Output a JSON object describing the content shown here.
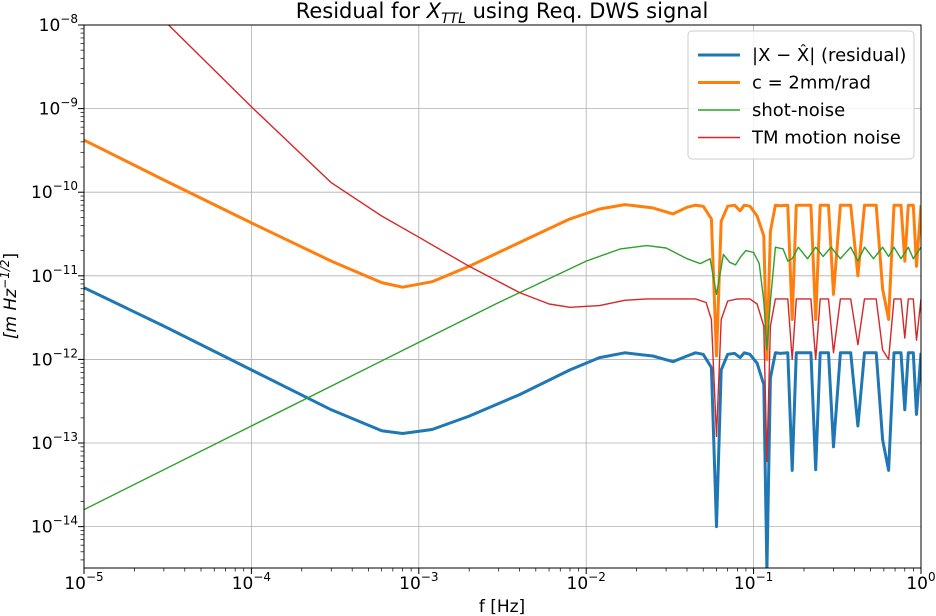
{
  "chart_data": {
    "type": "line",
    "title": {
      "prefix": "Residual for ",
      "symbol": "X",
      "subscript": "TTL",
      "suffix": " using Req. DWS signal"
    },
    "xlabel": "f [Hz]",
    "ylabel": {
      "base": "[m Hz",
      "exponent": "−1/2",
      "close": "]"
    },
    "x_scale": "log",
    "y_scale": "log",
    "xlim": [
      1e-05,
      1
    ],
    "ylim": [
      3.2e-15,
      1e-08
    ],
    "grid": true,
    "legend_position": "top-right",
    "x_ticks": [
      {
        "value": 1e-05,
        "base": "10",
        "exp": "−5"
      },
      {
        "value": 0.0001,
        "base": "10",
        "exp": "−4"
      },
      {
        "value": 0.001,
        "base": "10",
        "exp": "−3"
      },
      {
        "value": 0.01,
        "base": "10",
        "exp": "−2"
      },
      {
        "value": 0.1,
        "base": "10",
        "exp": "−1"
      },
      {
        "value": 1,
        "base": "10",
        "exp": "0"
      }
    ],
    "y_ticks": [
      {
        "value": 1e-08,
        "base": "10",
        "exp": "−8"
      },
      {
        "value": 1e-09,
        "base": "10",
        "exp": "−9"
      },
      {
        "value": 1e-10,
        "base": "10",
        "exp": "−10"
      },
      {
        "value": 1e-11,
        "base": "10",
        "exp": "−11"
      },
      {
        "value": 1e-12,
        "base": "10",
        "exp": "−12"
      },
      {
        "value": 1e-13,
        "base": "10",
        "exp": "−13"
      },
      {
        "value": 1e-14,
        "base": "10",
        "exp": "−14"
      }
    ],
    "series": [
      {
        "name": "|X − X̂| (residual)",
        "color": "#1f77b4",
        "line_width": "thick",
        "points": [
          [
            1e-05,
            7.2e-12
          ],
          [
            3e-05,
            2.5e-12
          ],
          [
            0.0001,
            7.5e-13
          ],
          [
            0.0003,
            2.5e-13
          ],
          [
            0.0006,
            1.4e-13
          ],
          [
            0.0008,
            1.3e-13
          ],
          [
            0.0012,
            1.45e-13
          ],
          [
            0.002,
            2.1e-13
          ],
          [
            0.004,
            3.8e-13
          ],
          [
            0.008,
            7.5e-13
          ],
          [
            0.012,
            1.05e-12
          ],
          [
            0.017,
            1.2e-12
          ],
          [
            0.025,
            1.1e-12
          ],
          [
            0.033,
            9.4e-13
          ],
          [
            0.04,
            1.1e-12
          ],
          [
            0.045,
            1.2e-12
          ],
          [
            0.05,
            1.15e-12
          ],
          [
            0.056,
            8e-13
          ],
          [
            0.06,
            1e-14
          ],
          [
            0.064,
            7.5e-13
          ],
          [
            0.07,
            1.15e-12
          ],
          [
            0.077,
            1.18e-12
          ],
          [
            0.083,
            1.05e-12
          ],
          [
            0.088,
            1.2e-12
          ],
          [
            0.095,
            1.15e-12
          ],
          [
            0.105,
            9e-13
          ],
          [
            0.115,
            5e-13
          ],
          [
            0.12,
            3e-15
          ],
          [
            0.126,
            6e-13
          ],
          [
            0.135,
            1.2e-12
          ],
          [
            0.145,
            1.18e-12
          ],
          [
            0.16,
            1.2e-12
          ],
          [
            0.17,
            4.7e-14
          ],
          [
            0.18,
            1.2e-12
          ],
          [
            0.2,
            1.2e-12
          ],
          [
            0.22,
            1.2e-12
          ],
          [
            0.235,
            4.8e-14
          ],
          [
            0.25,
            1.2e-12
          ],
          [
            0.28,
            1.2e-12
          ],
          [
            0.3,
            9e-14
          ],
          [
            0.33,
            1.2e-12
          ],
          [
            0.38,
            1.2e-12
          ],
          [
            0.42,
            1.6e-13
          ],
          [
            0.46,
            1.2e-12
          ],
          [
            0.54,
            1.2e-12
          ],
          [
            0.59,
            1.1e-13
          ],
          [
            0.64,
            4.7e-14
          ],
          [
            0.69,
            1.2e-12
          ],
          [
            0.76,
            1.2e-12
          ],
          [
            0.8,
            2.5e-13
          ],
          [
            0.84,
            1.2e-12
          ],
          [
            0.9,
            1.2e-12
          ],
          [
            0.94,
            2.2e-13
          ],
          [
            1,
            1.2e-12
          ]
        ]
      },
      {
        "name": "c = 2mm/rad",
        "color": "#ff7f0e",
        "line_width": "thick",
        "points": [
          [
            1e-05,
            4.2e-10
          ],
          [
            3e-05,
            1.4e-10
          ],
          [
            0.0001,
            4.3e-11
          ],
          [
            0.0003,
            1.5e-11
          ],
          [
            0.0006,
            8.3e-12
          ],
          [
            0.0008,
            7.3e-12
          ],
          [
            0.0012,
            8.5e-12
          ],
          [
            0.002,
            1.3e-11
          ],
          [
            0.004,
            2.5e-11
          ],
          [
            0.008,
            4.8e-11
          ],
          [
            0.012,
            6.3e-11
          ],
          [
            0.017,
            7.1e-11
          ],
          [
            0.025,
            6.5e-11
          ],
          [
            0.033,
            5.5e-11
          ],
          [
            0.04,
            6.6e-11
          ],
          [
            0.045,
            7e-11
          ],
          [
            0.05,
            6.8e-11
          ],
          [
            0.056,
            4.8e-11
          ],
          [
            0.06,
            1.1e-12
          ],
          [
            0.064,
            4.5e-11
          ],
          [
            0.07,
            6.8e-11
          ],
          [
            0.077,
            7e-11
          ],
          [
            0.083,
            6e-11
          ],
          [
            0.088,
            7e-11
          ],
          [
            0.095,
            6.8e-11
          ],
          [
            0.105,
            5.2e-11
          ],
          [
            0.115,
            3e-11
          ],
          [
            0.12,
            1e-12
          ],
          [
            0.126,
            3.4e-11
          ],
          [
            0.135,
            7e-11
          ],
          [
            0.145,
            6.9e-11
          ],
          [
            0.16,
            7e-11
          ],
          [
            0.17,
            3e-12
          ],
          [
            0.18,
            7e-11
          ],
          [
            0.2,
            7e-11
          ],
          [
            0.22,
            7e-11
          ],
          [
            0.235,
            3e-12
          ],
          [
            0.25,
            7e-11
          ],
          [
            0.28,
            7e-11
          ],
          [
            0.3,
            6e-12
          ],
          [
            0.33,
            7e-11
          ],
          [
            0.38,
            7e-11
          ],
          [
            0.42,
            1e-11
          ],
          [
            0.46,
            7e-11
          ],
          [
            0.54,
            7e-11
          ],
          [
            0.59,
            7e-12
          ],
          [
            0.64,
            3e-12
          ],
          [
            0.69,
            7e-11
          ],
          [
            0.76,
            7e-11
          ],
          [
            0.8,
            1.5e-11
          ],
          [
            0.84,
            7e-11
          ],
          [
            0.9,
            7e-11
          ],
          [
            0.94,
            1.3e-11
          ],
          [
            1,
            7e-11
          ]
        ]
      },
      {
        "name": "shot-noise",
        "color": "#2ca02c",
        "line_width": "thin",
        "points": [
          [
            1e-05,
            1.6e-14
          ],
          [
            0.0001,
            1.6e-13
          ],
          [
            0.001,
            1.6e-12
          ],
          [
            0.003,
            4.8e-12
          ],
          [
            0.01,
            1.5e-11
          ],
          [
            0.016,
            2.1e-11
          ],
          [
            0.023,
            2.3e-11
          ],
          [
            0.03,
            2.15e-11
          ],
          [
            0.04,
            1.6e-11
          ],
          [
            0.048,
            1.4e-11
          ],
          [
            0.055,
            1.6e-11
          ],
          [
            0.06,
            6e-12
          ],
          [
            0.066,
            1.8e-11
          ],
          [
            0.072,
            1.45e-11
          ],
          [
            0.078,
            1.35e-11
          ],
          [
            0.084,
            1.7e-11
          ],
          [
            0.09,
            2e-11
          ],
          [
            0.1,
            1.9e-11
          ],
          [
            0.108,
            1.4e-11
          ],
          [
            0.115,
            5e-12
          ],
          [
            0.12,
            1.3e-12
          ],
          [
            0.126,
            5e-12
          ],
          [
            0.135,
            2.2e-11
          ],
          [
            0.15,
            2.1e-11
          ],
          [
            0.16,
            1.5e-11
          ],
          [
            0.17,
            1.6e-11
          ],
          [
            0.185,
            2.2e-11
          ],
          [
            0.21,
            1.6e-11
          ],
          [
            0.235,
            2.2e-11
          ],
          [
            0.26,
            1.7e-11
          ],
          [
            0.29,
            2.2e-11
          ],
          [
            0.33,
            1.6e-11
          ],
          [
            0.38,
            2.2e-11
          ],
          [
            0.42,
            1.5e-11
          ],
          [
            0.46,
            2.2e-11
          ],
          [
            0.52,
            1.6e-11
          ],
          [
            0.59,
            2.2e-11
          ],
          [
            0.64,
            1.7e-11
          ],
          [
            0.69,
            2.2e-11
          ],
          [
            0.76,
            1.6e-11
          ],
          [
            0.84,
            2.2e-11
          ],
          [
            0.9,
            1.6e-11
          ],
          [
            1,
            2.2e-11
          ]
        ]
      },
      {
        "name": "TM motion noise",
        "color": "#d62728",
        "line_width": "thin",
        "points": [
          [
            3.2e-05,
            1e-08
          ],
          [
            0.0001,
            1.05e-09
          ],
          [
            0.0003,
            1.3e-10
          ],
          [
            0.0006,
            5.2e-11
          ],
          [
            0.001,
            2.9e-11
          ],
          [
            0.002,
            1.3e-11
          ],
          [
            0.004,
            6.3e-12
          ],
          [
            0.006,
            4.6e-12
          ],
          [
            0.008,
            4.2e-12
          ],
          [
            0.012,
            4.4e-12
          ],
          [
            0.017,
            5.1e-12
          ],
          [
            0.023,
            5.3e-12
          ],
          [
            0.033,
            5.3e-12
          ],
          [
            0.045,
            5.3e-12
          ],
          [
            0.052,
            4.8e-12
          ],
          [
            0.056,
            3e-12
          ],
          [
            0.06,
            1.2e-13
          ],
          [
            0.064,
            3e-12
          ],
          [
            0.07,
            5e-12
          ],
          [
            0.08,
            5.3e-12
          ],
          [
            0.095,
            5.3e-12
          ],
          [
            0.105,
            4.6e-12
          ],
          [
            0.115,
            2.5e-12
          ],
          [
            0.12,
            6e-14
          ],
          [
            0.126,
            2.5e-12
          ],
          [
            0.135,
            5.3e-12
          ],
          [
            0.16,
            5.3e-12
          ],
          [
            0.17,
            1e-12
          ],
          [
            0.18,
            5.3e-12
          ],
          [
            0.22,
            5.3e-12
          ],
          [
            0.235,
            1e-12
          ],
          [
            0.25,
            5.3e-12
          ],
          [
            0.28,
            5.3e-12
          ],
          [
            0.3,
            1.2e-12
          ],
          [
            0.33,
            5.3e-12
          ],
          [
            0.38,
            5.3e-12
          ],
          [
            0.42,
            1.5e-12
          ],
          [
            0.46,
            5.3e-12
          ],
          [
            0.54,
            5.3e-12
          ],
          [
            0.59,
            1.3e-12
          ],
          [
            0.64,
            1e-12
          ],
          [
            0.69,
            5.3e-12
          ],
          [
            0.76,
            5.3e-12
          ],
          [
            0.8,
            1.8e-12
          ],
          [
            0.84,
            5.3e-12
          ],
          [
            0.9,
            5.3e-12
          ],
          [
            0.94,
            1.7e-12
          ],
          [
            1,
            5.3e-12
          ]
        ]
      }
    ]
  }
}
